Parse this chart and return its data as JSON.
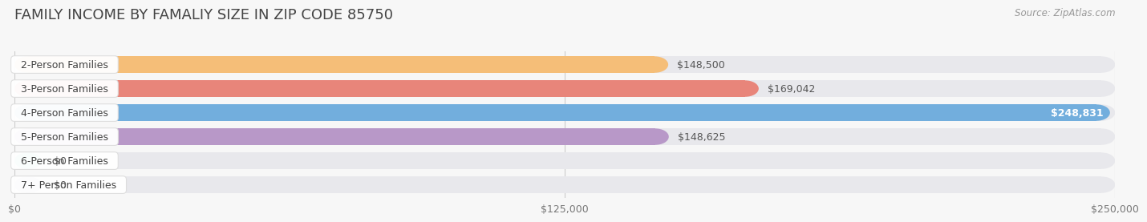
{
  "title": "FAMILY INCOME BY FAMALIY SIZE IN ZIP CODE 85750",
  "source": "Source: ZipAtlas.com",
  "categories": [
    "2-Person Families",
    "3-Person Families",
    "4-Person Families",
    "5-Person Families",
    "6-Person Families",
    "7+ Person Families"
  ],
  "values": [
    148500,
    169042,
    248831,
    148625,
    0,
    0
  ],
  "bar_colors": [
    "#F5BE78",
    "#E8857A",
    "#72AEDD",
    "#B898C8",
    "#5DC8B8",
    "#ADADD8"
  ],
  "bar_bg_colors": [
    "#EEEEEE",
    "#EEEEEE",
    "#EEEEEE",
    "#EEEEEE",
    "#EEEEEE",
    "#EEEEEE"
  ],
  "value_labels": [
    "$148,500",
    "$169,042",
    "$248,831",
    "$148,625",
    "$0",
    "$0"
  ],
  "xlim": [
    0,
    250000
  ],
  "xtick_values": [
    0,
    125000,
    250000
  ],
  "xtick_labels": [
    "$0",
    "$125,000",
    "$250,000"
  ],
  "background_color": "#f7f7f7",
  "bar_height": 0.68,
  "title_fontsize": 13,
  "label_fontsize": 9,
  "value_fontsize": 9,
  "source_fontsize": 8.5,
  "value_label_thresh": 0.92
}
